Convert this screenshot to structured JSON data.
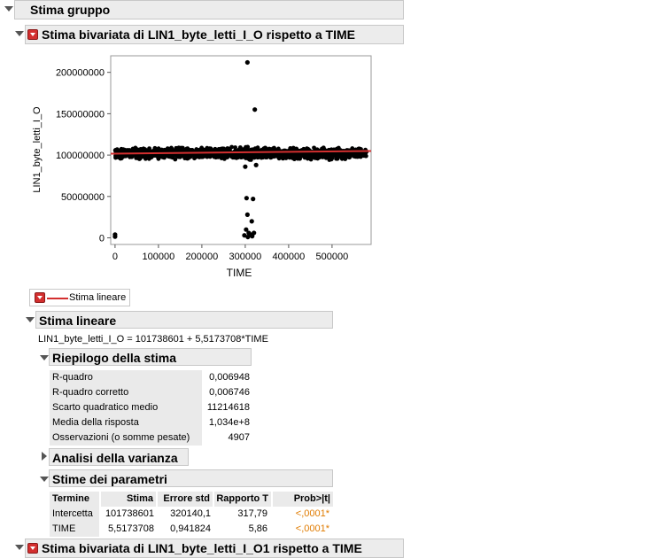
{
  "group": {
    "title": "Stima gruppo"
  },
  "section1": {
    "title": "Stima bivariata di LIN1_byte_letti_I_O rispetto a TIME"
  },
  "chart_data": {
    "type": "scatter",
    "xlabel": "TIME",
    "ylabel": "LIN1_byte_letti_I_O",
    "xlim": [
      -10000,
      590000
    ],
    "ylim": [
      -8000000,
      220000000
    ],
    "x_ticks": [
      "0",
      "100000",
      "200000",
      "300000",
      "400000",
      "500000"
    ],
    "x_tick_values": [
      0,
      100000,
      200000,
      300000,
      400000,
      500000
    ],
    "y_ticks": [
      "0",
      "50000000",
      "100000000",
      "150000000",
      "200000000"
    ],
    "y_tick_values": [
      0,
      50000000,
      100000000,
      150000000,
      200000000
    ],
    "dense_band": {
      "x_range": [
        0,
        580000
      ],
      "y_center": 102000000,
      "y_spread": 9000000,
      "color": "#000000"
    },
    "outliers": [
      {
        "x": 305000,
        "y": 212000000
      },
      {
        "x": 322000,
        "y": 155000000
      },
      {
        "x": 303000,
        "y": 48000000
      },
      {
        "x": 318000,
        "y": 47000000
      },
      {
        "x": 305000,
        "y": 28000000
      },
      {
        "x": 315000,
        "y": 20000000
      },
      {
        "x": 302000,
        "y": 10000000
      },
      {
        "x": 308000,
        "y": 6000000
      },
      {
        "x": 312000,
        "y": 4000000
      },
      {
        "x": 320000,
        "y": 6000000
      },
      {
        "x": 298000,
        "y": 3000000
      },
      {
        "x": 306000,
        "y": 1000000
      },
      {
        "x": 316000,
        "y": 2000000
      },
      {
        "x": 0,
        "y": 4000000
      },
      {
        "x": 0,
        "y": 1500000
      },
      {
        "x": 300000,
        "y": 86000000
      },
      {
        "x": 325000,
        "y": 88000000
      }
    ],
    "fit_line": {
      "intercept": 101738601,
      "slope": 5.5173708,
      "color": "#d32f2f",
      "name": "Stima lineare"
    }
  },
  "legend": {
    "label": "Stima lineare"
  },
  "fit": {
    "title": "Stima lineare",
    "equation": "LIN1_byte_letti_I_O = 101738601 + 5,5173708*TIME"
  },
  "summary": {
    "title": "Riepilogo della stima",
    "rows": [
      {
        "label": "R-quadro",
        "value": "0,006948"
      },
      {
        "label": "R-quadro corretto",
        "value": "0,006746"
      },
      {
        "label": "Scarto quadratico medio",
        "value": "11214618"
      },
      {
        "label": "Media della risposta",
        "value": "1,034e+8"
      },
      {
        "label": "Osservazioni (o somme pesate)",
        "value": "4907"
      }
    ]
  },
  "anova": {
    "title": "Analisi della varianza"
  },
  "params": {
    "title": "Stime dei parametri",
    "headers": [
      "Termine",
      "Stima",
      "Errore std",
      "Rapporto T",
      "Prob>|t|"
    ],
    "rows": [
      {
        "term": "Intercetta",
        "estimate": "101738601",
        "se": "320140,1",
        "t": "317,79",
        "p": "<,0001*"
      },
      {
        "term": "TIME",
        "estimate": "5,5173708",
        "se": "0,941824",
        "t": "5,86",
        "p": "<,0001*"
      }
    ]
  },
  "section2": {
    "title": "Stima bivariata di LIN1_byte_letti_I_O1 rispetto a TIME"
  }
}
